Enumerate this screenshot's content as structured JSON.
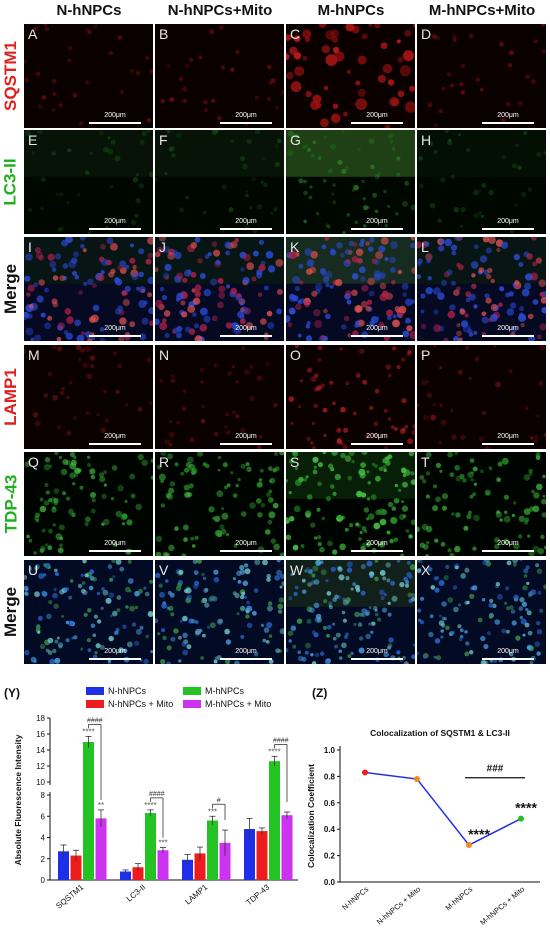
{
  "columns": [
    "N-hNPCs",
    "N-hNPCs+Mito",
    "M-hNPCs",
    "M-hNPCs+Mito"
  ],
  "rows": [
    {
      "label": "SQSTM1",
      "color": "#e02020",
      "panels": [
        "A",
        "B",
        "C",
        "D"
      ],
      "channel": "red"
    },
    {
      "label": "LC3-II",
      "color": "#20b020",
      "panels": [
        "E",
        "F",
        "G",
        "H"
      ],
      "channel": "green"
    },
    {
      "label": "Merge",
      "color": "#111111",
      "panels": [
        "I",
        "J",
        "K",
        "L"
      ],
      "channel": "merge1"
    },
    {
      "label": "LAMP1",
      "color": "#e02020",
      "panels": [
        "M",
        "N",
        "O",
        "P"
      ],
      "channel": "red2"
    },
    {
      "label": "TDP-43",
      "color": "#20b020",
      "panels": [
        "Q",
        "R",
        "S",
        "T"
      ],
      "channel": "green2"
    },
    {
      "label": "Merge",
      "color": "#111111",
      "panels": [
        "U",
        "V",
        "W",
        "X"
      ],
      "channel": "merge2"
    }
  ],
  "scale_bar_label": "200μm",
  "chart_labels": {
    "y_panel": "(Y)",
    "z_panel": "(Z)"
  },
  "chart_data": [
    {
      "type": "bar",
      "ylabel": "Absolute Fluorescence Intensity",
      "categories": [
        "SQSTM1",
        "LC3-II",
        "LAMP1",
        "TDP-43"
      ],
      "series": [
        {
          "name": "N-hNPCs",
          "color": "#1f2ee8",
          "values": [
            2.7,
            0.8,
            1.9,
            4.8
          ],
          "errors": [
            0.6,
            0.15,
            0.5,
            1.0
          ]
        },
        {
          "name": "N-hNPCs + Mito",
          "color": "#ee1c1c",
          "values": [
            2.3,
            1.2,
            2.5,
            4.6
          ],
          "errors": [
            0.5,
            0.35,
            0.6,
            0.3
          ]
        },
        {
          "name": "M-hNPCs",
          "color": "#22c322",
          "values": [
            15.0,
            6.3,
            5.6,
            12.6
          ],
          "errors": [
            0.7,
            0.3,
            0.4,
            0.6
          ]
        },
        {
          "name": "M-hNPCs + Mito",
          "color": "#cc33ee",
          "values": [
            5.8,
            2.8,
            3.5,
            6.1
          ],
          "errors": [
            0.8,
            0.25,
            1.2,
            0.3
          ]
        }
      ],
      "axis_break": [
        8,
        10
      ],
      "yticks_lower": [
        0,
        2,
        4,
        6,
        8
      ],
      "yticks_upper": [
        10,
        12,
        14,
        16,
        18
      ],
      "annotations": {
        "SQSTM1": {
          "star_m": "****",
          "star_mm": "**",
          "hash": "####"
        },
        "LC3-II": {
          "star_m": "****",
          "star_mm": "***",
          "hash": "####"
        },
        "LAMP1": {
          "star_m": "***",
          "star_mm": "",
          "hash": "#"
        },
        "TDP-43": {
          "star_m": "****",
          "star_mm": "",
          "hash": "####"
        }
      }
    },
    {
      "type": "line",
      "title": "Colocalization of SQSTM1 & LC3-II",
      "ylabel": "Colocalization Coefficient",
      "categories": [
        "N-hNPCs",
        "N-hNPCs + Mito",
        "M-hNPCs",
        "M-hNPCs + Mito"
      ],
      "values": [
        0.83,
        0.78,
        0.28,
        0.48
      ],
      "point_colors": [
        "#ee1c1c",
        "#f08a1c",
        "#f08a1c",
        "#22c322"
      ],
      "ylim": [
        0.0,
        1.0
      ],
      "yticks": [
        "0.0",
        "0.2",
        "0.4",
        "0.6",
        "0.8",
        "1.0"
      ],
      "stars": [
        "",
        "",
        "****",
        "****"
      ],
      "hash": "###"
    }
  ]
}
